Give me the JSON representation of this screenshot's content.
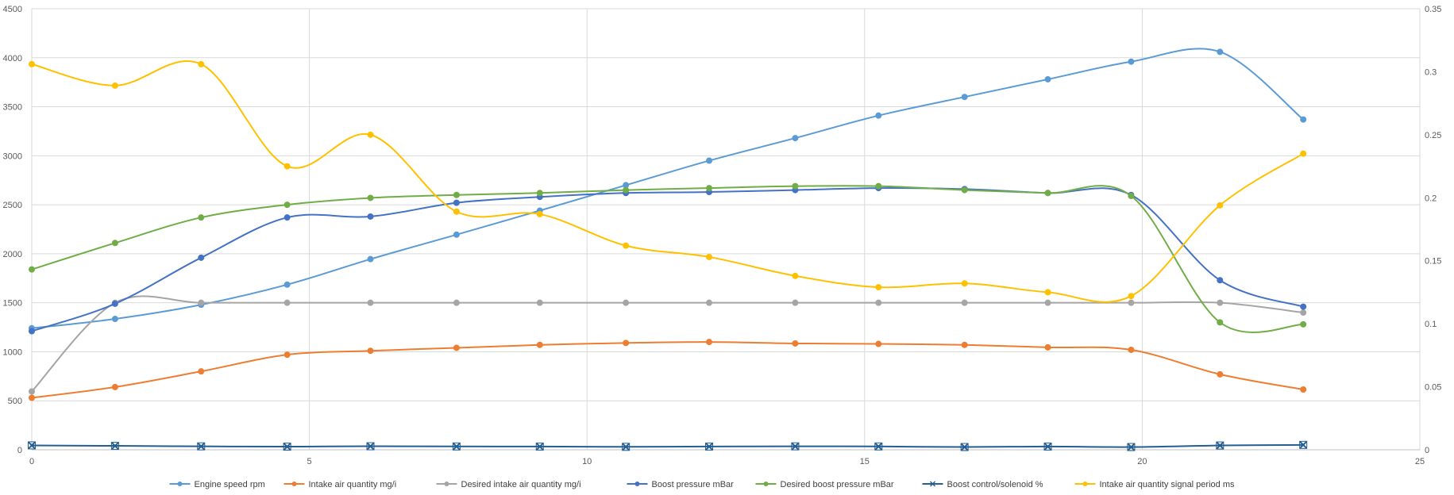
{
  "chart_data": {
    "type": "line",
    "smooth": true,
    "grid": true,
    "legend_position": "bottom",
    "x": [
      0,
      1.5,
      3.05,
      4.6,
      6.1,
      7.65,
      9.15,
      10.7,
      12.2,
      13.75,
      15.25,
      16.8,
      18.3,
      19.8,
      21.4,
      22.9
    ],
    "x_axis": {
      "range": [
        0,
        25
      ],
      "ticks": [
        0,
        5,
        10,
        15,
        20,
        25
      ]
    },
    "y_left_axis": {
      "range": [
        0,
        4500
      ],
      "ticks": [
        0,
        500,
        1000,
        1500,
        2000,
        2500,
        3000,
        3500,
        4000,
        4500
      ]
    },
    "y_right_axis": {
      "range": [
        0,
        0.35
      ],
      "ticks": [
        "0",
        "0.05",
        "0.1",
        "0.15",
        "0.2",
        "0.25",
        "0.3",
        "0.35"
      ]
    },
    "series": [
      {
        "name": "Engine speed rpm",
        "axis": "left",
        "color": "#5B9BD5",
        "marker": "circle",
        "values": [
          1240,
          1335,
          1480,
          1685,
          1945,
          2195,
          2440,
          2700,
          2950,
          3180,
          3410,
          3600,
          3780,
          3960,
          4060,
          3370
        ]
      },
      {
        "name": "Intake air quantity mg/i",
        "axis": "left",
        "color": "#ED7D31",
        "marker": "circle",
        "values": [
          530,
          640,
          800,
          970,
          1010,
          1040,
          1070,
          1090,
          1100,
          1085,
          1080,
          1070,
          1045,
          1020,
          770,
          615
        ]
      },
      {
        "name": "Desired intake air quantity mg/i",
        "axis": "left",
        "color": "#A5A5A5",
        "marker": "circle",
        "values": [
          595,
          1500,
          1500,
          1500,
          1500,
          1500,
          1500,
          1500,
          1500,
          1500,
          1500,
          1500,
          1500,
          1500,
          1500,
          1400
        ]
      },
      {
        "name": "Boost pressure mBar",
        "axis": "left",
        "color": "#4472C4",
        "marker": "circle",
        "values": [
          1210,
          1490,
          1960,
          2370,
          2380,
          2520,
          2580,
          2620,
          2630,
          2650,
          2670,
          2660,
          2620,
          2600,
          1730,
          1460
        ]
      },
      {
        "name": "Desired boost pressure mBar",
        "axis": "left",
        "color": "#70AD47",
        "marker": "circle",
        "values": [
          1840,
          2110,
          2370,
          2500,
          2570,
          2600,
          2620,
          2650,
          2670,
          2690,
          2690,
          2650,
          2620,
          2590,
          1300,
          1280
        ]
      },
      {
        "name": "Boost control/solenoid %",
        "axis": "left",
        "color": "#255E91",
        "marker": "x",
        "values": [
          45,
          40,
          35,
          32,
          36,
          34,
          33,
          30,
          33,
          35,
          34,
          28,
          33,
          28,
          44,
          50
        ]
      },
      {
        "name": "Intake air quantity signal period ms",
        "axis": "right",
        "color": "#FFC000",
        "marker": "circle",
        "values": [
          0.306,
          0.289,
          0.306,
          0.225,
          0.25,
          0.189,
          0.187,
          0.162,
          0.153,
          0.138,
          0.129,
          0.132,
          0.125,
          0.122,
          0.194,
          0.235
        ]
      }
    ]
  }
}
